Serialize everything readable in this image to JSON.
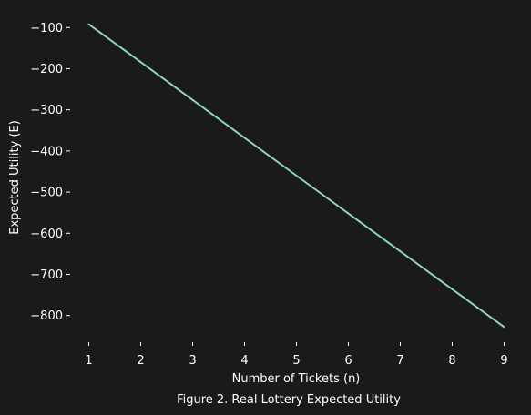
{
  "chart_data": {
    "type": "line",
    "title": "",
    "caption": "Figure 2. Real Lottery Expected Utility",
    "xlabel": "Number of Tickets (n)",
    "ylabel": "Expected Utility (E)",
    "x": [
      1,
      2,
      3,
      4,
      5,
      6,
      7,
      8,
      9
    ],
    "series": [
      {
        "values": [
          -92,
          -184,
          -276,
          -368,
          -460,
          -552,
          -644,
          -736,
          -828
        ]
      }
    ],
    "xticks": [
      "1",
      "2",
      "3",
      "4",
      "5",
      "6",
      "7",
      "8",
      "9"
    ],
    "yticks": [
      {
        "value": -100,
        "label": "−100"
      },
      {
        "value": -200,
        "label": "−200"
      },
      {
        "value": -300,
        "label": "−300"
      },
      {
        "value": -400,
        "label": "−400"
      },
      {
        "value": -500,
        "label": "−500"
      },
      {
        "value": -600,
        "label": "−600"
      },
      {
        "value": -700,
        "label": "−700"
      },
      {
        "value": -800,
        "label": "−800"
      }
    ],
    "xlim": [
      0.64,
      9.36
    ],
    "ylim": [
      -864.8,
      -55.2
    ],
    "grid": false,
    "line_color": "#8dd3c7",
    "background": "#1a1a1a",
    "text_color": "#ffffff"
  }
}
